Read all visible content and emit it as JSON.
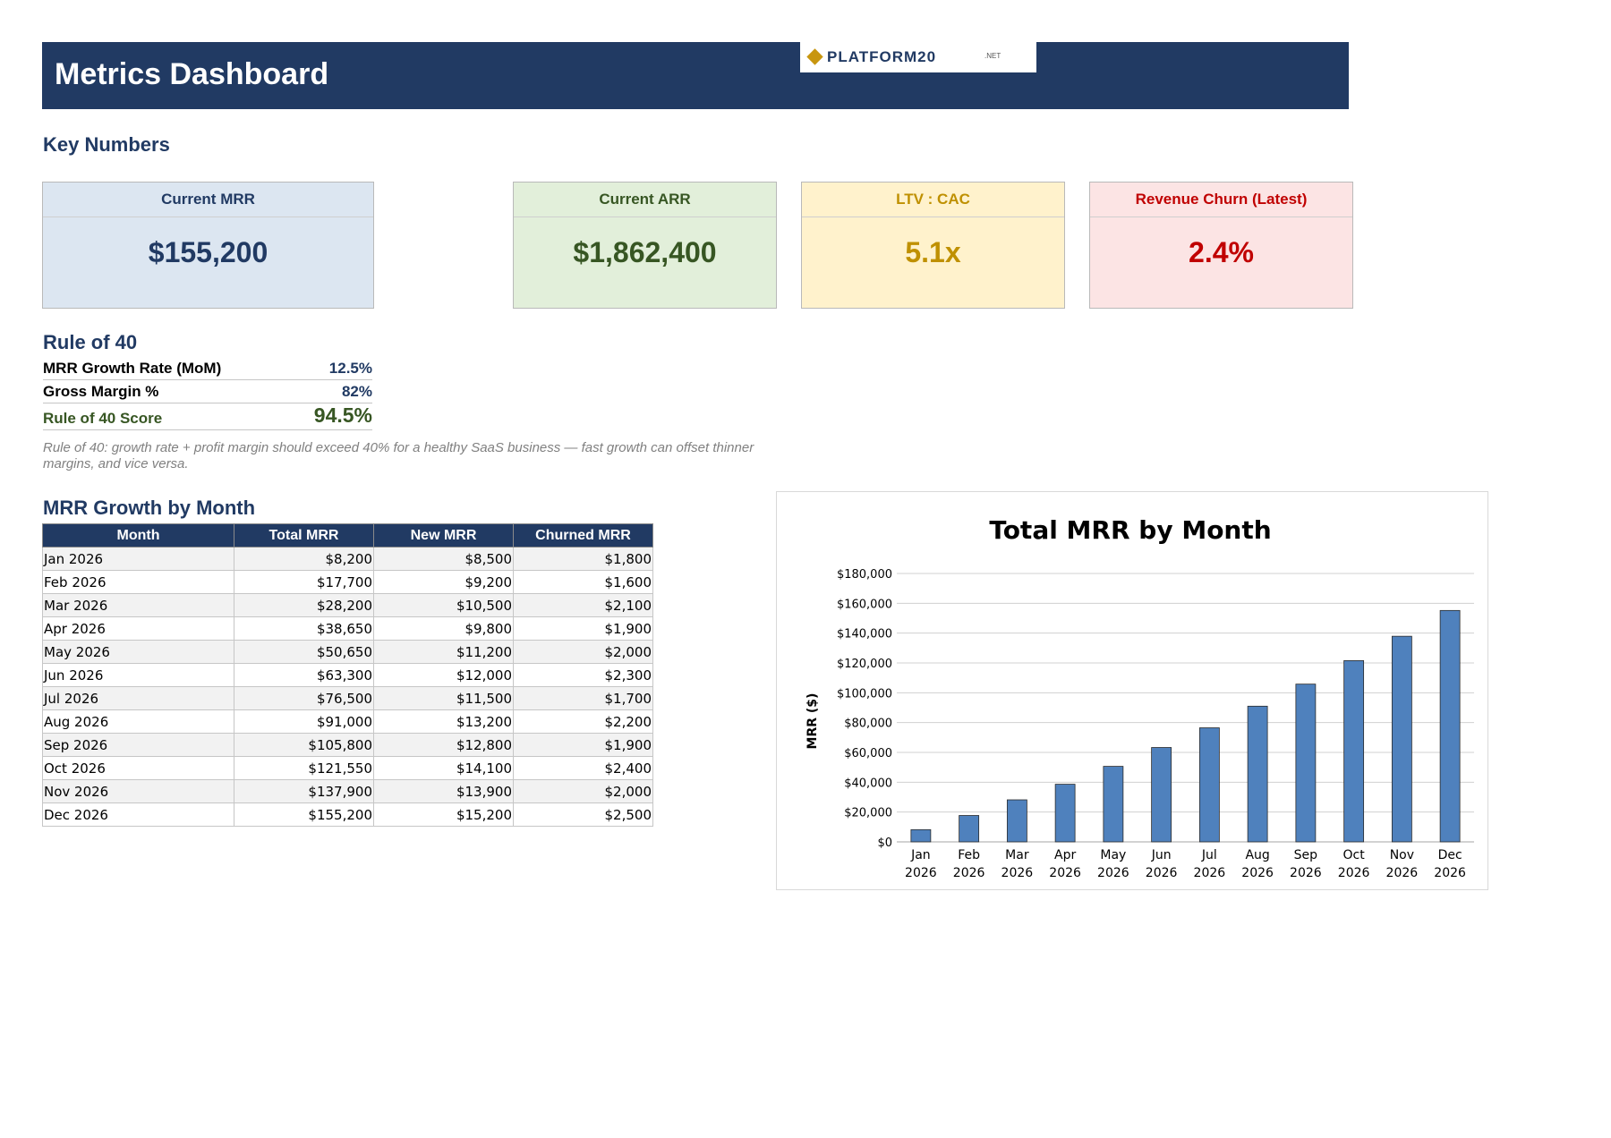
{
  "header": {
    "title": "Metrics Dashboard"
  },
  "logo": {
    "name": "PLATFORM20",
    "suffix": ".NET"
  },
  "key_numbers": {
    "title": "Key Numbers",
    "cards": [
      {
        "label": "Current MRR",
        "value": "$155,200",
        "label_color": "#213A63",
        "value_color": "#213A63",
        "bg": "#DCE6F1"
      },
      {
        "label": "Current ARR",
        "value": "$1,862,400",
        "label_color": "#375623",
        "value_color": "#375623",
        "bg": "#E2EFDA"
      },
      {
        "label": "LTV : CAC",
        "value": "5.1x",
        "label_color": "#BF9000",
        "value_color": "#BF9000",
        "bg": "#FFF2CC"
      },
      {
        "label": "Revenue Churn (Latest)",
        "value": "2.4%",
        "label_color": "#C00000",
        "value_color": "#C00000",
        "bg": "#FCE4E4"
      }
    ]
  },
  "rule_of_40": {
    "title": "Rule of 40",
    "rows": [
      {
        "label": "MRR Growth Rate (MoM)",
        "value": "12.5%"
      },
      {
        "label": "Gross Margin %",
        "value": "82%"
      },
      {
        "label": "Rule of 40 Score",
        "value": "94.5%"
      }
    ],
    "score_color": "#375623",
    "note": "Rule of 40: growth rate + profit margin should exceed 40% for a healthy SaaS business — fast growth can offset thinner margins, and vice versa."
  },
  "mrr_table": {
    "title": "MRR Growth by Month",
    "columns": [
      "Month",
      "Total MRR",
      "New MRR",
      "Churned MRR"
    ],
    "rows": [
      [
        "Jan 2026",
        "$8,200",
        "$8,500",
        "$1,800"
      ],
      [
        "Feb 2026",
        "$17,700",
        "$9,200",
        "$1,600"
      ],
      [
        "Mar 2026",
        "$28,200",
        "$10,500",
        "$2,100"
      ],
      [
        "Apr 2026",
        "$38,650",
        "$9,800",
        "$1,900"
      ],
      [
        "May 2026",
        "$50,650",
        "$11,200",
        "$2,000"
      ],
      [
        "Jun 2026",
        "$63,300",
        "$12,000",
        "$2,300"
      ],
      [
        "Jul 2026",
        "$76,500",
        "$11,500",
        "$1,700"
      ],
      [
        "Aug 2026",
        "$91,000",
        "$13,200",
        "$2,200"
      ],
      [
        "Sep 2026",
        "$105,800",
        "$12,800",
        "$1,900"
      ],
      [
        "Oct 2026",
        "$121,550",
        "$14,100",
        "$2,400"
      ],
      [
        "Nov 2026",
        "$137,900",
        "$13,900",
        "$2,000"
      ],
      [
        "Dec 2026",
        "$155,200",
        "$15,200",
        "$2,500"
      ]
    ]
  },
  "chart_data": {
    "type": "bar",
    "title": "Total MRR by Month",
    "xlabel": "",
    "ylabel": "MRR ($)",
    "categories": [
      [
        "Jan",
        "2026"
      ],
      [
        "Feb",
        "2026"
      ],
      [
        "Mar",
        "2026"
      ],
      [
        "Apr",
        "2026"
      ],
      [
        "May",
        "2026"
      ],
      [
        "Jun",
        "2026"
      ],
      [
        "Jul",
        "2026"
      ],
      [
        "Aug",
        "2026"
      ],
      [
        "Sep",
        "2026"
      ],
      [
        "Oct",
        "2026"
      ],
      [
        "Nov",
        "2026"
      ],
      [
        "Dec",
        "2026"
      ]
    ],
    "values": [
      8200,
      17700,
      28200,
      38650,
      50650,
      63300,
      76500,
      91000,
      105800,
      121550,
      137900,
      155200
    ],
    "ylim": [
      0,
      180000
    ],
    "yticks": [
      0,
      20000,
      40000,
      60000,
      80000,
      100000,
      120000,
      140000,
      160000,
      180000
    ],
    "ytick_labels": [
      "$0",
      "$20,000",
      "$40,000",
      "$60,000",
      "$80,000",
      "$100,000",
      "$120,000",
      "$140,000",
      "$160,000",
      "$180,000"
    ],
    "grid": true,
    "legend": "none",
    "bar_color": "#4F81BD"
  }
}
